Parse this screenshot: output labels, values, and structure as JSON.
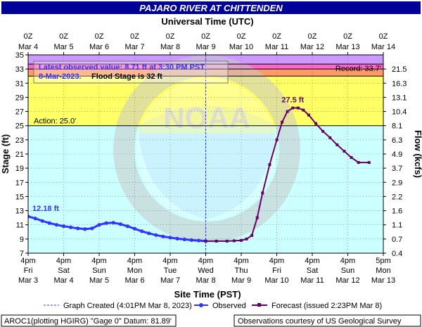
{
  "chart_data": {
    "type": "line",
    "title": "PAJARO RIVER AT CHITTENDEN",
    "top_axis_label": "Universal Time (UTC)",
    "xlabel": "Site Time (PST)",
    "ylabel": "Stage (ft)",
    "y2label": "Flow (kcfs)",
    "ylim": [
      7,
      35
    ],
    "y_ticks": [
      7,
      9,
      11,
      13,
      15,
      17,
      19,
      21,
      23,
      25,
      27,
      29,
      31,
      33,
      35
    ],
    "x_ticks_bottom": [
      {
        "l1": "4pm",
        "l2": "Fri",
        "l3": "Mar 3"
      },
      {
        "l1": "4pm",
        "l2": "Sat",
        "l3": "Mar 4"
      },
      {
        "l1": "4pm",
        "l2": "Sun",
        "l3": "Mar 5"
      },
      {
        "l1": "4pm",
        "l2": "Mon",
        "l3": "Mar 6"
      },
      {
        "l1": "4pm",
        "l2": "Tue",
        "l3": "Mar 7"
      },
      {
        "l1": "4pm",
        "l2": "Wed",
        "l3": "Mar 8"
      },
      {
        "l1": "4pm",
        "l2": "Thu",
        "l3": "Mar 9"
      },
      {
        "l1": "4pm",
        "l2": "Fri",
        "l3": "Mar 10"
      },
      {
        "l1": "4pm",
        "l2": "Sat",
        "l3": "Mar 11"
      },
      {
        "l1": "4pm",
        "l2": "Sun",
        "l3": "Mar 12"
      },
      {
        "l1": "5pm",
        "l2": "Mon",
        "l3": "Mar 13"
      }
    ],
    "x_ticks_top": [
      {
        "l1": "0Z",
        "l2": "Mar  4"
      },
      {
        "l1": "0Z",
        "l2": "Mar  5"
      },
      {
        "l1": "0Z",
        "l2": "Mar  6"
      },
      {
        "l1": "0Z",
        "l2": "Mar  7"
      },
      {
        "l1": "0Z",
        "l2": "Mar  8"
      },
      {
        "l1": "0Z",
        "l2": "Mar  9"
      },
      {
        "l1": "0Z",
        "l2": "Mar 10"
      },
      {
        "l1": "0Z",
        "l2": "Mar 11"
      },
      {
        "l1": "0Z",
        "l2": "Mar 12"
      },
      {
        "l1": "0Z",
        "l2": "Mar 13"
      },
      {
        "l1": "0Z",
        "l2": "Mar 14"
      }
    ],
    "flow_ticks": [
      {
        "stage": 7,
        "label": "0.4"
      },
      {
        "stage": 9,
        "label": "0.7"
      },
      {
        "stage": 11,
        "label": "1.1"
      },
      {
        "stage": 13,
        "label": "1.6"
      },
      {
        "stage": 15,
        "label": "2.2"
      },
      {
        "stage": 17,
        "label": "2.9"
      },
      {
        "stage": 19,
        "label": "3.7"
      },
      {
        "stage": 21,
        "label": "4.9"
      },
      {
        "stage": 23,
        "label": "6.3"
      },
      {
        "stage": 25,
        "label": "8.1"
      },
      {
        "stage": 27,
        "label": "10.4"
      },
      {
        "stage": 29,
        "label": "13.1"
      },
      {
        "stage": 31,
        "label": "16.3"
      },
      {
        "stage": 33,
        "label": "21.5"
      }
    ],
    "bands": [
      {
        "from": 25.0,
        "to": 32.0,
        "color": "#ffff66",
        "label": "Action: 25.0'"
      },
      {
        "from": 32.0,
        "to": 33.0,
        "color": "#ff9966",
        "label": ""
      },
      {
        "from": 33.0,
        "to": 33.7,
        "color": "#ff66cc",
        "label": ""
      },
      {
        "from": 33.7,
        "to": 35.0,
        "color": "#cc99ff",
        "label": "Record: 33.7'"
      }
    ],
    "band_rules": [
      25.0,
      32.0,
      33.0,
      33.7
    ],
    "graph_created_day": 5.0,
    "series": [
      {
        "name": "Observed",
        "color": "#3333ff",
        "x": [
          0.0,
          0.2,
          0.4,
          0.6,
          0.8,
          1.0,
          1.2,
          1.4,
          1.6,
          1.8,
          2.0,
          2.2,
          2.4,
          2.6,
          2.8,
          3.0,
          3.2,
          3.4,
          3.6,
          3.8,
          4.0,
          4.2,
          4.4,
          4.6,
          4.8,
          5.0
        ],
        "y": [
          12.18,
          11.9,
          11.55,
          11.25,
          11.0,
          10.8,
          10.65,
          10.5,
          10.4,
          10.5,
          11.0,
          11.25,
          11.3,
          11.1,
          10.8,
          10.45,
          10.1,
          9.8,
          9.55,
          9.35,
          9.2,
          9.05,
          8.95,
          8.85,
          8.78,
          8.71
        ]
      },
      {
        "name": "Forecast (issued 2:23PM Mar 8)",
        "color": "#660066",
        "x": [
          5.0,
          5.3,
          5.6,
          5.8,
          6.0,
          6.15,
          6.3,
          6.45,
          6.6,
          6.8,
          7.0,
          7.15,
          7.3,
          7.45,
          7.6,
          7.75,
          7.9,
          8.1,
          8.3,
          8.5,
          8.7,
          8.9,
          9.1,
          9.3,
          9.6
        ],
        "y": [
          8.7,
          8.7,
          8.7,
          8.75,
          8.8,
          9.0,
          9.5,
          12.0,
          15.5,
          19.5,
          23.0,
          25.5,
          27.0,
          27.5,
          27.5,
          27.2,
          26.5,
          25.3,
          24.2,
          23.3,
          22.3,
          21.4,
          20.5,
          19.8,
          19.8
        ]
      }
    ],
    "annotations": {
      "observed_label": "12.18 ft",
      "forecast_peak_label": "27.5 ft",
      "latest_observed": "Latest observed value: 8.71 ft at 3:30 PM PST",
      "latest_date": "8-Mar-2023.",
      "flood_stage": "Flood Stage is 32 ft"
    },
    "legend": {
      "placement": "bottom",
      "graph_created": "Graph Created (4:01PM Mar 8, 2023)",
      "observed": "Observed",
      "forecast": "Forecast (issued 2:23PM Mar 8)"
    },
    "footer": {
      "left": "AROC1(plotting HGIRG) \"Gage 0\" Datum:  81.89'",
      "right": "Observations courtesy of US Geological Survey"
    },
    "watermark": "NOAA"
  }
}
